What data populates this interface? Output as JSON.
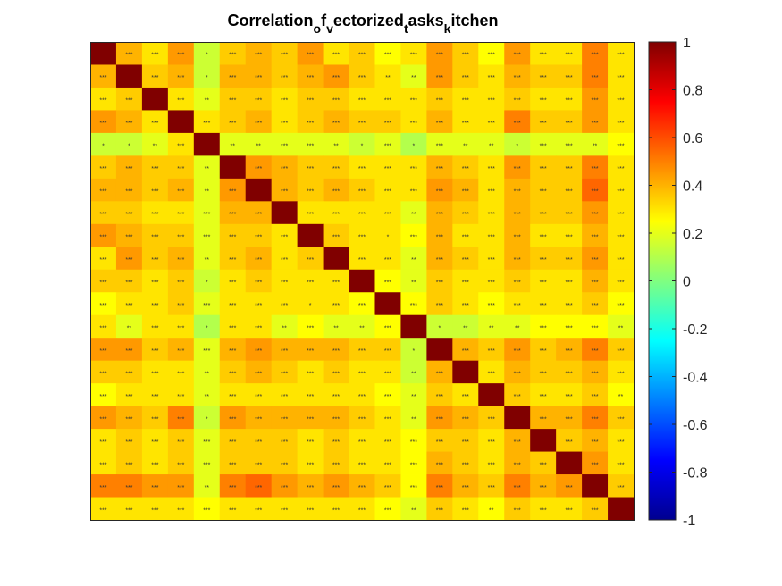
{
  "chart_data": {
    "type": "heatmap",
    "title_parts": [
      {
        "text": "Correlation",
        "sub": false
      },
      {
        "text": "o",
        "sub": true
      },
      {
        "text": "f",
        "sub": false
      },
      {
        "text": "v",
        "sub": true
      },
      {
        "text": "ectorized",
        "sub": false
      },
      {
        "text": "t",
        "sub": true
      },
      {
        "text": "asks",
        "sub": false
      },
      {
        "text": "k",
        "sub": true
      },
      {
        "text": "itchen",
        "sub": false
      }
    ],
    "n": 21,
    "clim": [
      -1,
      1
    ],
    "colormap": "jet",
    "colorbar_ticks": [
      "1",
      "0.8",
      "0.6",
      "0.4",
      "0.2",
      "0",
      "-0.2",
      "-0.4",
      "-0.6",
      "-0.8",
      "-1"
    ],
    "colorbar_tick_values": [
      1,
      0.8,
      0.6,
      0.4,
      0.2,
      0,
      -0.2,
      -0.4,
      -0.6,
      -0.8,
      -1
    ],
    "values": [
      [
        1.0,
        0.4,
        0.3,
        0.45,
        0.15,
        0.35,
        0.4,
        0.35,
        0.45,
        0.3,
        0.35,
        0.25,
        0.3,
        0.45,
        0.35,
        0.25,
        0.45,
        0.3,
        0.3,
        0.5,
        0.3
      ],
      [
        0.4,
        1.0,
        0.35,
        0.4,
        0.15,
        0.4,
        0.4,
        0.35,
        0.4,
        0.45,
        0.35,
        0.3,
        0.2,
        0.45,
        0.35,
        0.3,
        0.4,
        0.35,
        0.35,
        0.5,
        0.3
      ],
      [
        0.3,
        0.35,
        1.0,
        0.3,
        0.2,
        0.35,
        0.35,
        0.3,
        0.35,
        0.35,
        0.3,
        0.3,
        0.3,
        0.35,
        0.3,
        0.3,
        0.35,
        0.3,
        0.3,
        0.45,
        0.3
      ],
      [
        0.45,
        0.4,
        0.3,
        1.0,
        0.3,
        0.35,
        0.4,
        0.3,
        0.35,
        0.4,
        0.35,
        0.35,
        0.3,
        0.4,
        0.3,
        0.3,
        0.5,
        0.35,
        0.35,
        0.45,
        0.3
      ],
      [
        0.15,
        0.15,
        0.2,
        0.3,
        1.0,
        0.2,
        0.2,
        0.2,
        0.2,
        0.2,
        0.15,
        0.2,
        0.1,
        0.2,
        0.2,
        0.2,
        0.15,
        0.2,
        0.2,
        0.2,
        0.25
      ],
      [
        0.35,
        0.4,
        0.35,
        0.35,
        0.2,
        1.0,
        0.45,
        0.4,
        0.35,
        0.35,
        0.3,
        0.3,
        0.3,
        0.4,
        0.35,
        0.3,
        0.45,
        0.35,
        0.35,
        0.5,
        0.3
      ],
      [
        0.4,
        0.4,
        0.35,
        0.4,
        0.2,
        0.45,
        1.0,
        0.4,
        0.35,
        0.4,
        0.35,
        0.3,
        0.3,
        0.45,
        0.4,
        0.3,
        0.4,
        0.35,
        0.35,
        0.55,
        0.3
      ],
      [
        0.35,
        0.35,
        0.3,
        0.3,
        0.2,
        0.4,
        0.4,
        1.0,
        0.3,
        0.3,
        0.3,
        0.3,
        0.2,
        0.4,
        0.35,
        0.3,
        0.4,
        0.35,
        0.35,
        0.45,
        0.3
      ],
      [
        0.45,
        0.4,
        0.35,
        0.35,
        0.2,
        0.35,
        0.35,
        0.3,
        1.0,
        0.35,
        0.3,
        0.3,
        0.25,
        0.4,
        0.3,
        0.3,
        0.4,
        0.3,
        0.3,
        0.4,
        0.3
      ],
      [
        0.3,
        0.45,
        0.35,
        0.4,
        0.2,
        0.35,
        0.4,
        0.3,
        0.35,
        1.0,
        0.3,
        0.3,
        0.2,
        0.4,
        0.35,
        0.3,
        0.4,
        0.35,
        0.35,
        0.45,
        0.3
      ],
      [
        0.35,
        0.35,
        0.3,
        0.35,
        0.15,
        0.3,
        0.35,
        0.3,
        0.3,
        0.3,
        1.0,
        0.25,
        0.2,
        0.35,
        0.3,
        0.3,
        0.35,
        0.3,
        0.3,
        0.4,
        0.3
      ],
      [
        0.25,
        0.3,
        0.3,
        0.35,
        0.2,
        0.3,
        0.3,
        0.3,
        0.3,
        0.3,
        0.25,
        1.0,
        0.25,
        0.35,
        0.3,
        0.25,
        0.3,
        0.3,
        0.3,
        0.35,
        0.25
      ],
      [
        0.3,
        0.2,
        0.3,
        0.3,
        0.1,
        0.3,
        0.3,
        0.2,
        0.25,
        0.2,
        0.2,
        0.25,
        1.0,
        0.15,
        0.15,
        0.2,
        0.2,
        0.25,
        0.25,
        0.25,
        0.2
      ],
      [
        0.45,
        0.45,
        0.35,
        0.4,
        0.2,
        0.4,
        0.45,
        0.4,
        0.4,
        0.4,
        0.35,
        0.35,
        0.15,
        1.0,
        0.4,
        0.35,
        0.45,
        0.35,
        0.4,
        0.5,
        0.35
      ],
      [
        0.35,
        0.35,
        0.3,
        0.3,
        0.2,
        0.35,
        0.4,
        0.35,
        0.3,
        0.35,
        0.3,
        0.3,
        0.15,
        0.4,
        1.0,
        0.3,
        0.4,
        0.35,
        0.35,
        0.4,
        0.3
      ],
      [
        0.25,
        0.3,
        0.3,
        0.3,
        0.2,
        0.3,
        0.3,
        0.3,
        0.3,
        0.3,
        0.3,
        0.25,
        0.2,
        0.35,
        0.3,
        1.0,
        0.35,
        0.3,
        0.3,
        0.35,
        0.25
      ],
      [
        0.45,
        0.4,
        0.35,
        0.5,
        0.15,
        0.45,
        0.4,
        0.4,
        0.4,
        0.4,
        0.35,
        0.3,
        0.2,
        0.45,
        0.4,
        0.35,
        1.0,
        0.4,
        0.4,
        0.5,
        0.35
      ],
      [
        0.3,
        0.35,
        0.3,
        0.35,
        0.2,
        0.35,
        0.35,
        0.35,
        0.3,
        0.35,
        0.3,
        0.3,
        0.25,
        0.35,
        0.35,
        0.3,
        0.4,
        1.0,
        0.35,
        0.4,
        0.3
      ],
      [
        0.3,
        0.35,
        0.3,
        0.35,
        0.2,
        0.35,
        0.35,
        0.35,
        0.3,
        0.35,
        0.3,
        0.3,
        0.25,
        0.4,
        0.35,
        0.3,
        0.4,
        0.35,
        1.0,
        0.45,
        0.3
      ],
      [
        0.5,
        0.5,
        0.45,
        0.45,
        0.2,
        0.5,
        0.55,
        0.45,
        0.4,
        0.45,
        0.4,
        0.35,
        0.25,
        0.5,
        0.4,
        0.35,
        0.5,
        0.4,
        0.45,
        1.0,
        0.35
      ],
      [
        0.3,
        0.3,
        0.3,
        0.3,
        0.25,
        0.3,
        0.3,
        0.3,
        0.3,
        0.3,
        0.3,
        0.25,
        0.2,
        0.35,
        0.3,
        0.25,
        0.35,
        0.3,
        0.3,
        0.35,
        1.0
      ]
    ],
    "significance": [
      [
        "",
        "***",
        "***",
        "***",
        "*",
        "***",
        "***",
        "***",
        "***",
        "***",
        "***",
        "***",
        "***",
        "***",
        "***",
        "***",
        "***",
        "***",
        "***",
        "***",
        "***"
      ],
      [
        "***",
        "",
        "***",
        "***",
        "*",
        "***",
        "***",
        "***",
        "***",
        "***",
        "***",
        "**",
        "**",
        "***",
        "***",
        "***",
        "***",
        "***",
        "***",
        "***",
        "***"
      ],
      [
        "***",
        "***",
        "",
        "***",
        "**",
        "***",
        "***",
        "***",
        "***",
        "***",
        "***",
        "***",
        "***",
        "***",
        "***",
        "***",
        "***",
        "***",
        "***",
        "***",
        "***"
      ],
      [
        "***",
        "***",
        "***",
        "",
        "***",
        "***",
        "***",
        "***",
        "***",
        "***",
        "***",
        "***",
        "***",
        "***",
        "***",
        "***",
        "***",
        "***",
        "***",
        "***",
        "***"
      ],
      [
        "*",
        "*",
        "**",
        "***",
        "",
        "**",
        "**",
        "***",
        "***",
        "**",
        "*",
        "***",
        "*",
        "***",
        "**",
        "**",
        "*",
        "***",
        "***",
        "**",
        "***"
      ],
      [
        "***",
        "***",
        "***",
        "***",
        "**",
        "",
        "***",
        "***",
        "***",
        "***",
        "***",
        "***",
        "***",
        "***",
        "***",
        "***",
        "***",
        "***",
        "***",
        "***",
        "***"
      ],
      [
        "***",
        "***",
        "***",
        "***",
        "**",
        "***",
        "",
        "***",
        "***",
        "***",
        "***",
        "***",
        "***",
        "***",
        "***",
        "***",
        "***",
        "***",
        "***",
        "***",
        "***"
      ],
      [
        "***",
        "***",
        "***",
        "***",
        "***",
        "***",
        "***",
        "",
        "***",
        "***",
        "***",
        "***",
        "**",
        "***",
        "***",
        "***",
        "***",
        "***",
        "***",
        "***",
        "***"
      ],
      [
        "***",
        "***",
        "***",
        "***",
        "***",
        "***",
        "***",
        "***",
        "",
        "***",
        "***",
        "*",
        "***",
        "***",
        "***",
        "***",
        "***",
        "***",
        "***",
        "***",
        "***"
      ],
      [
        "***",
        "***",
        "***",
        "***",
        "**",
        "***",
        "***",
        "***",
        "***",
        "",
        "***",
        "***",
        "**",
        "***",
        "***",
        "***",
        "***",
        "***",
        "***",
        "***",
        "***"
      ],
      [
        "***",
        "***",
        "***",
        "***",
        "*",
        "***",
        "***",
        "***",
        "***",
        "***",
        "",
        "***",
        "**",
        "***",
        "***",
        "***",
        "***",
        "***",
        "***",
        "***",
        "***"
      ],
      [
        "***",
        "***",
        "***",
        "***",
        "***",
        "***",
        "***",
        "***",
        "*",
        "***",
        "***",
        "",
        "***",
        "***",
        "***",
        "***",
        "***",
        "***",
        "***",
        "***",
        "***"
      ],
      [
        "***",
        "**",
        "***",
        "***",
        "*",
        "***",
        "***",
        "**",
        "***",
        "**",
        "**",
        "***",
        "",
        "*",
        "**",
        "**",
        "**",
        "***",
        "***",
        "***",
        "**"
      ],
      [
        "***",
        "***",
        "***",
        "***",
        "***",
        "***",
        "***",
        "***",
        "***",
        "***",
        "***",
        "***",
        "*",
        "",
        "***",
        "***",
        "***",
        "***",
        "***",
        "***",
        "***"
      ],
      [
        "***",
        "***",
        "***",
        "***",
        "**",
        "***",
        "***",
        "***",
        "***",
        "***",
        "***",
        "***",
        "**",
        "***",
        "",
        "***",
        "***",
        "***",
        "***",
        "***",
        "***"
      ],
      [
        "***",
        "***",
        "***",
        "***",
        "**",
        "***",
        "***",
        "***",
        "***",
        "***",
        "***",
        "***",
        "**",
        "***",
        "***",
        "",
        "***",
        "***",
        "***",
        "***",
        "**"
      ],
      [
        "***",
        "***",
        "***",
        "***",
        "*",
        "***",
        "***",
        "***",
        "***",
        "***",
        "***",
        "***",
        "**",
        "***",
        "***",
        "***",
        "",
        "***",
        "***",
        "***",
        "***"
      ],
      [
        "***",
        "***",
        "***",
        "***",
        "***",
        "***",
        "***",
        "***",
        "***",
        "***",
        "***",
        "***",
        "***",
        "***",
        "***",
        "***",
        "***",
        "",
        "***",
        "***",
        "***"
      ],
      [
        "***",
        "***",
        "***",
        "***",
        "***",
        "***",
        "***",
        "***",
        "***",
        "***",
        "***",
        "***",
        "***",
        "***",
        "***",
        "***",
        "***",
        "***",
        "",
        "***",
        "***"
      ],
      [
        "***",
        "***",
        "***",
        "***",
        "**",
        "***",
        "***",
        "***",
        "***",
        "***",
        "***",
        "***",
        "***",
        "***",
        "***",
        "***",
        "***",
        "***",
        "***",
        "",
        "***"
      ],
      [
        "***",
        "***",
        "***",
        "***",
        "***",
        "***",
        "***",
        "***",
        "***",
        "***",
        "***",
        "***",
        "**",
        "***",
        "***",
        "**",
        "***",
        "***",
        "***",
        "***",
        ""
      ]
    ]
  }
}
